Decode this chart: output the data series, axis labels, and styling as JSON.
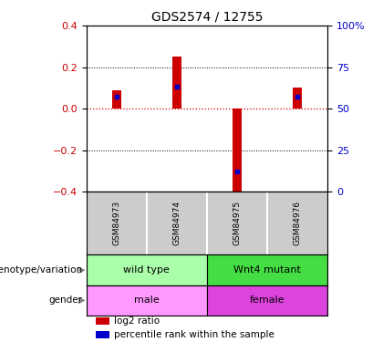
{
  "title": "GDS2574 / 12755",
  "samples": [
    "GSM84973",
    "GSM84974",
    "GSM84975",
    "GSM84976"
  ],
  "log2_ratio": [
    0.09,
    0.25,
    -0.42,
    0.1
  ],
  "percentile_rank": [
    0.57,
    0.63,
    0.12,
    0.57
  ],
  "ylim": [
    -0.4,
    0.4
  ],
  "yticks_left": [
    -0.4,
    -0.2,
    0.0,
    0.2,
    0.4
  ],
  "yticks_right": [
    0,
    25,
    50,
    75,
    100
  ],
  "genotype_labels": [
    {
      "text": "wild type",
      "cols": [
        0,
        1
      ],
      "color": "#AAFFAA"
    },
    {
      "text": "Wnt4 mutant",
      "cols": [
        2,
        3
      ],
      "color": "#44DD44"
    }
  ],
  "gender_labels": [
    {
      "text": "male",
      "cols": [
        0,
        1
      ],
      "color": "#FF99FF"
    },
    {
      "text": "female",
      "cols": [
        2,
        3
      ],
      "color": "#DD44DD"
    }
  ],
  "bar_color": "#CC0000",
  "dot_color": "#0000CC",
  "zero_line_color": "#CC0000",
  "grid_color": "#000000",
  "sample_box_color": "#CCCCCC",
  "left_label_color": "#CC0000",
  "right_label_color": "#0000CC",
  "legend_items": [
    {
      "label": "log2 ratio",
      "color": "#CC0000"
    },
    {
      "label": "percentile rank within the sample",
      "color": "#0000CC"
    }
  ],
  "genotype_row_label": "genotype/variation",
  "gender_row_label": "gender",
  "bar_width": 0.15
}
